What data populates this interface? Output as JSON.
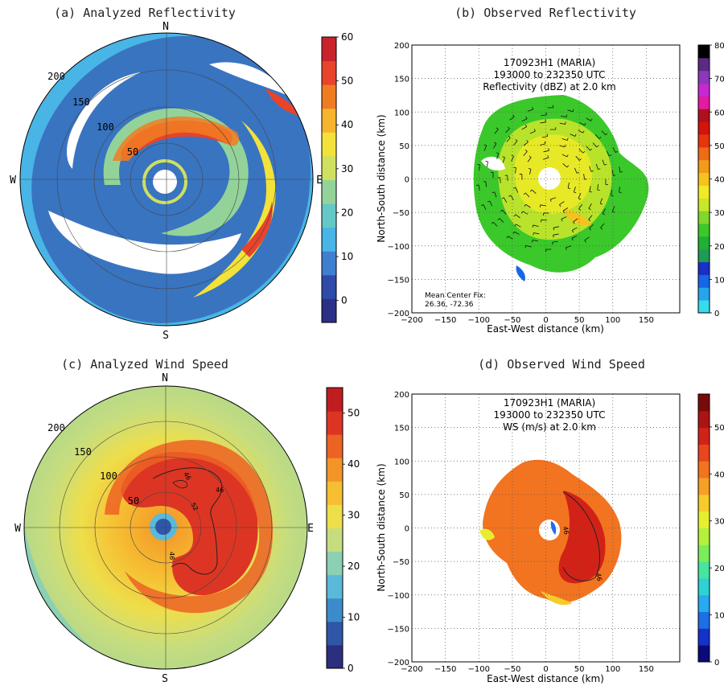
{
  "chart_data": [
    {
      "id": "a",
      "type": "heatmap",
      "projection": "polar",
      "title": "(a) Analyzed Reflectivity",
      "compass": {
        "north": "N",
        "south": "S",
        "east": "E",
        "west": "W"
      },
      "range_rings": [
        50,
        100,
        150,
        200
      ],
      "ring_labels": [
        "50",
        "100",
        "150",
        "200"
      ],
      "colorbar": {
        "min": -5,
        "max": 60,
        "ticks": [
          0,
          10,
          20,
          30,
          40,
          50,
          60
        ],
        "tick_labels": [
          "0",
          "10",
          "20",
          "30",
          "40",
          "50",
          "60"
        ],
        "colors": [
          "#2b2f86",
          "#2f4aa8",
          "#3f7fcf",
          "#49b4e6",
          "#66c8c6",
          "#93d39a",
          "#cfe060",
          "#f2e23a",
          "#f6b52c",
          "#f07c22",
          "#e8432b",
          "#c8232c"
        ]
      }
    },
    {
      "id": "b",
      "type": "heatmap",
      "projection": "cartesian",
      "title": "(b) Observed Reflectivity",
      "annotation": [
        "170923H1 (MARIA)",
        "193000 to 232350 UTC",
        "Reflectivity (dBZ) at 2.0 km"
      ],
      "footnote": [
        "Mean Center Fix:",
        "26.36, -72.36"
      ],
      "xlabel": "East-West distance (km)",
      "ylabel": "North-South distance (km)",
      "xlim": [
        -200,
        200
      ],
      "ylim": [
        -200,
        200
      ],
      "xticks": [
        -200,
        -150,
        -100,
        -50,
        0,
        50,
        100,
        150
      ],
      "yticks": [
        -200,
        -150,
        -100,
        -50,
        0,
        50,
        100,
        150,
        200
      ],
      "xtick_labels": [
        "−200",
        "−150",
        "−100",
        "−50",
        "0",
        "50",
        "100",
        "150"
      ],
      "ytick_labels": [
        "−200",
        "−150",
        "−100",
        "−50",
        "0",
        "50",
        "100",
        "150",
        "200"
      ],
      "grid": true,
      "colorbar": {
        "min": 0,
        "max": 80,
        "ticks": [
          0,
          10,
          20,
          30,
          40,
          50,
          60,
          70,
          80
        ],
        "tick_labels": [
          "0",
          "10",
          "20",
          "30",
          "40",
          "50",
          "60",
          "70",
          "80"
        ],
        "colors": [
          "#35dcee",
          "#25a6ec",
          "#1468e4",
          "#1a2ec8",
          "#1e9b55",
          "#1fb035",
          "#3bc82a",
          "#7fd82a",
          "#c8e62a",
          "#f2ea26",
          "#f6c21f",
          "#f49a1a",
          "#ee6c14",
          "#e6360e",
          "#d2140c",
          "#b0101c",
          "#e41aa2",
          "#c52ad0",
          "#8a3ab8",
          "#5a2a84",
          "#000000"
        ]
      }
    },
    {
      "id": "c",
      "type": "heatmap",
      "projection": "polar",
      "title": "(c) Analyzed Wind Speed",
      "compass": {
        "north": "N",
        "south": "S",
        "east": "E",
        "west": "W"
      },
      "range_rings": [
        50,
        100,
        150,
        200
      ],
      "ring_labels": [
        "50",
        "100",
        "150",
        "200"
      ],
      "contour_labels": [
        "46",
        "52",
        "46",
        "46"
      ],
      "colorbar": {
        "min": 0,
        "max": 55,
        "ticks": [
          0,
          10,
          20,
          30,
          40,
          50
        ],
        "tick_labels": [
          "0",
          "10",
          "20",
          "30",
          "40",
          "50"
        ],
        "colors": [
          "#2c2e7e",
          "#2f56a7",
          "#3b8ccb",
          "#5ab9d9",
          "#8cd0b3",
          "#c6dd7f",
          "#eede4a",
          "#f6bf32",
          "#f39428",
          "#ec6324",
          "#dd3523",
          "#c01d21"
        ]
      }
    },
    {
      "id": "d",
      "type": "heatmap",
      "projection": "cartesian",
      "title": "(d) Observed Wind Speed",
      "annotation": [
        "170923H1 (MARIA)",
        "193000 to 232350 UTC",
        "WS (m/s) at 2.0 km"
      ],
      "contour_labels": [
        "46",
        "46"
      ],
      "xlabel": "East-West distance (km)",
      "ylabel": "North-South distance (km)",
      "xlim": [
        -200,
        200
      ],
      "ylim": [
        -200,
        200
      ],
      "xticks": [
        -200,
        -150,
        -100,
        -50,
        0,
        50,
        100,
        150
      ],
      "yticks": [
        -200,
        -150,
        -100,
        -50,
        0,
        50,
        100,
        150,
        200
      ],
      "xtick_labels": [
        "−200",
        "−150",
        "−100",
        "−50",
        "0",
        "50",
        "100",
        "150"
      ],
      "ytick_labels": [
        "−200",
        "−150",
        "−100",
        "−50",
        "0",
        "50",
        "100",
        "150",
        "200"
      ],
      "grid": true,
      "colorbar": {
        "min": 0,
        "max": 57,
        "ticks": [
          0,
          10,
          20,
          30,
          40,
          50
        ],
        "tick_labels": [
          "0",
          "10",
          "20",
          "30",
          "40",
          "50"
        ],
        "colors": [
          "#0a0a7a",
          "#1432c8",
          "#1e6ee6",
          "#28aaf0",
          "#2ed2d2",
          "#46e6a0",
          "#7aee5a",
          "#b4f03c",
          "#e6ee32",
          "#f6cc2c",
          "#f6a026",
          "#f27420",
          "#e8461c",
          "#d22218",
          "#ac1414",
          "#7a0a0a"
        ]
      }
    }
  ]
}
